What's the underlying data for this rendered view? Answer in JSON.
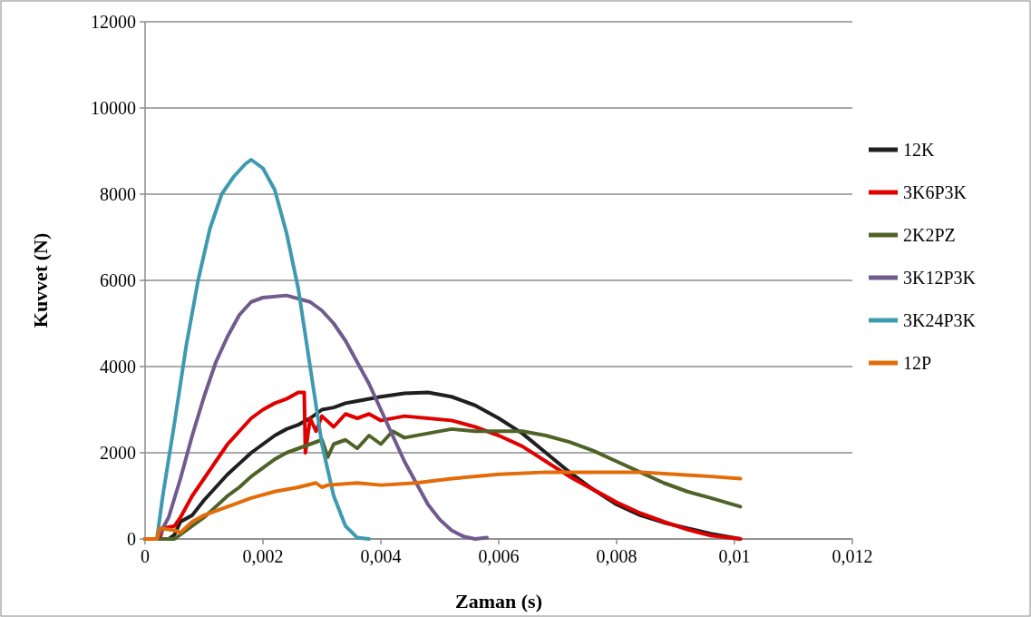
{
  "chart_data": {
    "type": "line",
    "xlabel": "Zaman (s)",
    "ylabel": "Kuvvet (N)",
    "xlim": [
      0,
      0.012
    ],
    "ylim": [
      0,
      12000
    ],
    "xticks": [
      {
        "value": 0,
        "label": "0"
      },
      {
        "value": 0.002,
        "label": "0,002"
      },
      {
        "value": 0.004,
        "label": "0,004"
      },
      {
        "value": 0.006,
        "label": "0,006"
      },
      {
        "value": 0.008,
        "label": "0,008"
      },
      {
        "value": 0.01,
        "label": "0,01"
      },
      {
        "value": 0.012,
        "label": "0,012"
      }
    ],
    "yticks": [
      0,
      2000,
      4000,
      6000,
      8000,
      10000,
      12000
    ],
    "grid": "y",
    "legend": "right",
    "marker": "none",
    "line_style": "solid",
    "series": [
      {
        "name": "12K",
        "color": "#1f1f1f",
        "x": [
          0,
          0.0004,
          0.0005,
          0.0006,
          0.0008,
          0.001,
          0.0012,
          0.0014,
          0.0016,
          0.0018,
          0.002,
          0.0022,
          0.0024,
          0.0026,
          0.0028,
          0.003,
          0.0032,
          0.0034,
          0.0036,
          0.004,
          0.0044,
          0.0048,
          0.0052,
          0.0056,
          0.006,
          0.0064,
          0.0068,
          0.0072,
          0.0076,
          0.008,
          0.0084,
          0.0088,
          0.0092,
          0.0096,
          0.0101
        ],
        "values": [
          0,
          0,
          100,
          400,
          550,
          900,
          1200,
          1500,
          1750,
          2000,
          2200,
          2400,
          2550,
          2650,
          2800,
          3000,
          3050,
          3150,
          3200,
          3300,
          3380,
          3400,
          3300,
          3100,
          2800,
          2450,
          2000,
          1550,
          1150,
          800,
          550,
          380,
          250,
          120,
          0
        ]
      },
      {
        "name": "3K6P3K",
        "color": "#e00000",
        "x": [
          0,
          0.00025,
          0.0003,
          0.0005,
          0.0006,
          0.0008,
          0.001,
          0.0012,
          0.0014,
          0.0016,
          0.0018,
          0.002,
          0.0022,
          0.0024,
          0.0026,
          0.0027,
          0.00272,
          0.0028,
          0.0029,
          0.003,
          0.0032,
          0.0034,
          0.0036,
          0.0038,
          0.004,
          0.0044,
          0.0048,
          0.0052,
          0.0056,
          0.006,
          0.0064,
          0.0068,
          0.0072,
          0.0076,
          0.008,
          0.0084,
          0.0088,
          0.0092,
          0.0096,
          0.0101
        ],
        "values": [
          0,
          0,
          250,
          300,
          500,
          1000,
          1400,
          1800,
          2200,
          2500,
          2800,
          3000,
          3150,
          3250,
          3400,
          3400,
          2000,
          2800,
          2500,
          2850,
          2600,
          2900,
          2800,
          2900,
          2750,
          2850,
          2800,
          2750,
          2600,
          2400,
          2150,
          1800,
          1450,
          1150,
          850,
          600,
          400,
          220,
          80,
          0
        ]
      },
      {
        "name": "2K2PZ",
        "color": "#4f6228",
        "x": [
          0,
          0.0005,
          0.0006,
          0.0008,
          0.001,
          0.0012,
          0.0014,
          0.0016,
          0.0018,
          0.002,
          0.0022,
          0.0024,
          0.0026,
          0.0028,
          0.003,
          0.0031,
          0.0032,
          0.0034,
          0.0036,
          0.0038,
          0.004,
          0.0042,
          0.0044,
          0.0048,
          0.0052,
          0.0056,
          0.006,
          0.0064,
          0.0068,
          0.0072,
          0.0076,
          0.008,
          0.0084,
          0.0088,
          0.0092,
          0.0096,
          0.0101
        ],
        "values": [
          0,
          0,
          100,
          300,
          500,
          750,
          1000,
          1200,
          1450,
          1650,
          1850,
          2000,
          2100,
          2200,
          2300,
          1900,
          2200,
          2300,
          2100,
          2400,
          2200,
          2500,
          2350,
          2450,
          2550,
          2500,
          2500,
          2500,
          2400,
          2250,
          2050,
          1800,
          1550,
          1300,
          1100,
          950,
          750
        ]
      },
      {
        "name": "3K12P3K",
        "color": "#705a8e",
        "x": [
          0,
          0.0002,
          0.0004,
          0.0006,
          0.0008,
          0.001,
          0.0012,
          0.0014,
          0.0016,
          0.0018,
          0.002,
          0.0024,
          0.0028,
          0.003,
          0.0032,
          0.0034,
          0.0036,
          0.0038,
          0.004,
          0.0042,
          0.0044,
          0.0046,
          0.0048,
          0.005,
          0.0052,
          0.0054,
          0.0056,
          0.0058
        ],
        "values": [
          0,
          0,
          500,
          1400,
          2400,
          3300,
          4100,
          4700,
          5200,
          5500,
          5600,
          5650,
          5500,
          5300,
          5000,
          4600,
          4100,
          3600,
          3000,
          2400,
          1800,
          1300,
          800,
          450,
          200,
          60,
          0,
          30
        ]
      },
      {
        "name": "3K24P3K",
        "color": "#3e9ab0",
        "x": [
          0,
          0.0002,
          0.0003,
          0.0005,
          0.0007,
          0.0009,
          0.0011,
          0.0013,
          0.0015,
          0.0017,
          0.0018,
          0.002,
          0.0022,
          0.0024,
          0.0026,
          0.0028,
          0.003,
          0.0032,
          0.0034,
          0.0036,
          0.0038
        ],
        "values": [
          0,
          0,
          1000,
          2700,
          4500,
          6000,
          7200,
          8000,
          8400,
          8700,
          8800,
          8600,
          8100,
          7100,
          5800,
          4000,
          2200,
          1000,
          300,
          30,
          0
        ]
      },
      {
        "name": "12P",
        "color": "#e36c09",
        "x": [
          0,
          0.0002,
          0.00025,
          0.0005,
          0.0006,
          0.0008,
          0.001,
          0.0014,
          0.0018,
          0.0022,
          0.0026,
          0.0029,
          0.003,
          0.0031,
          0.0036,
          0.004,
          0.0046,
          0.0052,
          0.006,
          0.0068,
          0.0076,
          0.0084,
          0.009,
          0.0096,
          0.0101
        ],
        "values": [
          0,
          0,
          250,
          200,
          150,
          400,
          550,
          750,
          950,
          1100,
          1200,
          1300,
          1200,
          1250,
          1300,
          1250,
          1300,
          1400,
          1500,
          1550,
          1550,
          1550,
          1500,
          1450,
          1400
        ]
      }
    ]
  }
}
